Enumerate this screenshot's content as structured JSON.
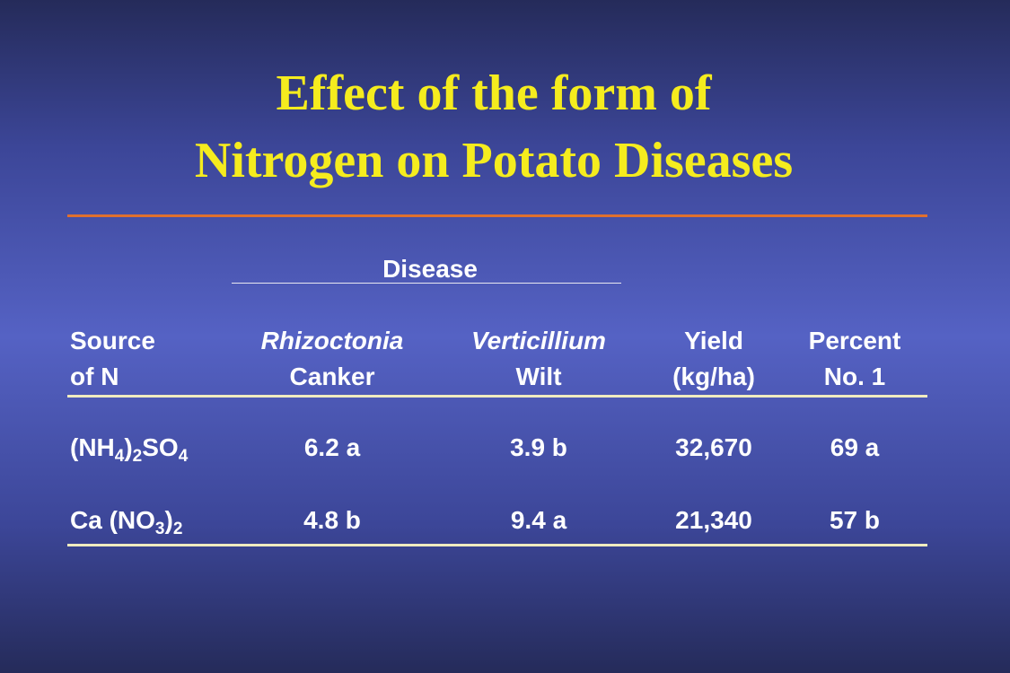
{
  "title": [
    "Effect of the form of",
    "Nitrogen on Potato Diseases"
  ],
  "table": {
    "group_header": "Disease",
    "columns": [
      [
        "Source",
        "of N"
      ],
      [
        "Rhizoctonia",
        "Canker"
      ],
      [
        "Verticillium",
        "Wilt"
      ],
      [
        "Yield",
        "(kg/ha)"
      ],
      [
        "Percent",
        "No. 1"
      ]
    ],
    "rows": [
      [
        "(NH4)2SO4",
        "6.2 a",
        "3.9 b",
        "32,670",
        "69 a"
      ],
      [
        "Ca (NO3)2",
        "4.8 b",
        "9.4 a",
        "21,340",
        "57 b"
      ]
    ]
  }
}
